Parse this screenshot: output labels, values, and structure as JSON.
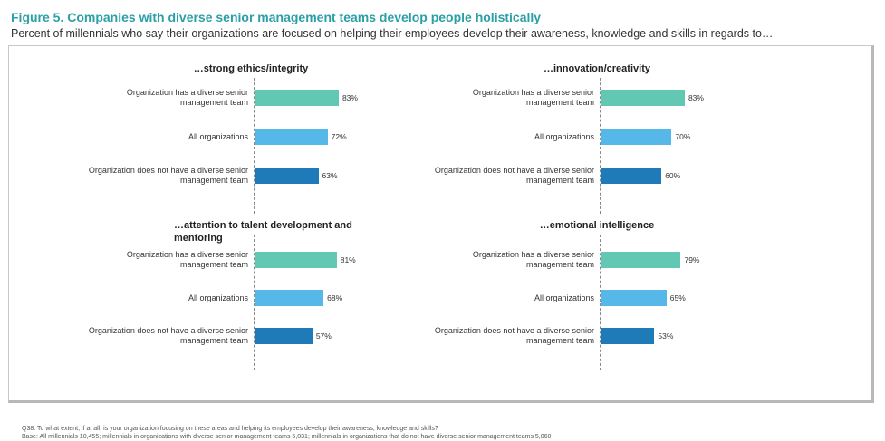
{
  "figure": {
    "title": "Figure 5. Companies with diverse senior management teams develop people holistically",
    "subtitle": "Percent of millennials who say their organizations are focused on helping their employees develop their awareness, knowledge and skills in regards to…"
  },
  "colors": {
    "title": "#2aa0a6",
    "diverse": "#62c7b3",
    "all": "#56b8e8",
    "not_diverse": "#1f7bb8"
  },
  "chart_data": [
    {
      "type": "bar",
      "title": "…strong ethics/integrity",
      "categories": [
        "Organization has a diverse senior management team",
        "All organizations",
        "Organization does not have a diverse senior management team"
      ],
      "values": [
        83,
        72,
        63
      ],
      "value_labels": [
        "83%",
        "72%",
        "63%"
      ],
      "xlim": [
        0,
        100
      ],
      "grid": false
    },
    {
      "type": "bar",
      "title": "…innovation/creativity",
      "categories": [
        "Organization has a diverse senior management team",
        "All organizations",
        "Organization does not have a diverse senior management team"
      ],
      "values": [
        83,
        70,
        60
      ],
      "value_labels": [
        "83%",
        "70%",
        "60%"
      ],
      "xlim": [
        0,
        100
      ],
      "grid": false
    },
    {
      "type": "bar",
      "title": "…attention to talent development and mentoring",
      "categories": [
        "Organization has a diverse senior management team",
        "All organizations",
        "Organization does not have a diverse senior management team"
      ],
      "values": [
        81,
        68,
        57
      ],
      "value_labels": [
        "81%",
        "68%",
        "57%"
      ],
      "xlim": [
        0,
        100
      ],
      "grid": false
    },
    {
      "type": "bar",
      "title": "…emotional intelligence",
      "categories": [
        "Organization has a diverse senior management team",
        "All organizations",
        "Organization does not have a diverse senior management team"
      ],
      "values": [
        79,
        65,
        53
      ],
      "value_labels": [
        "79%",
        "65%",
        "53%"
      ],
      "xlim": [
        0,
        100
      ],
      "grid": false
    }
  ],
  "footnote": {
    "question": "Q38. To what extent, if at all, is your organization focusing on these areas and helping its employees develop their awareness, knowledge and skills?",
    "base": "Base: All millennials 10,455; millennials in organizations with diverse senior management teams 5,031; millennials in organizations that do not have diverse senior management teams 5,060"
  }
}
